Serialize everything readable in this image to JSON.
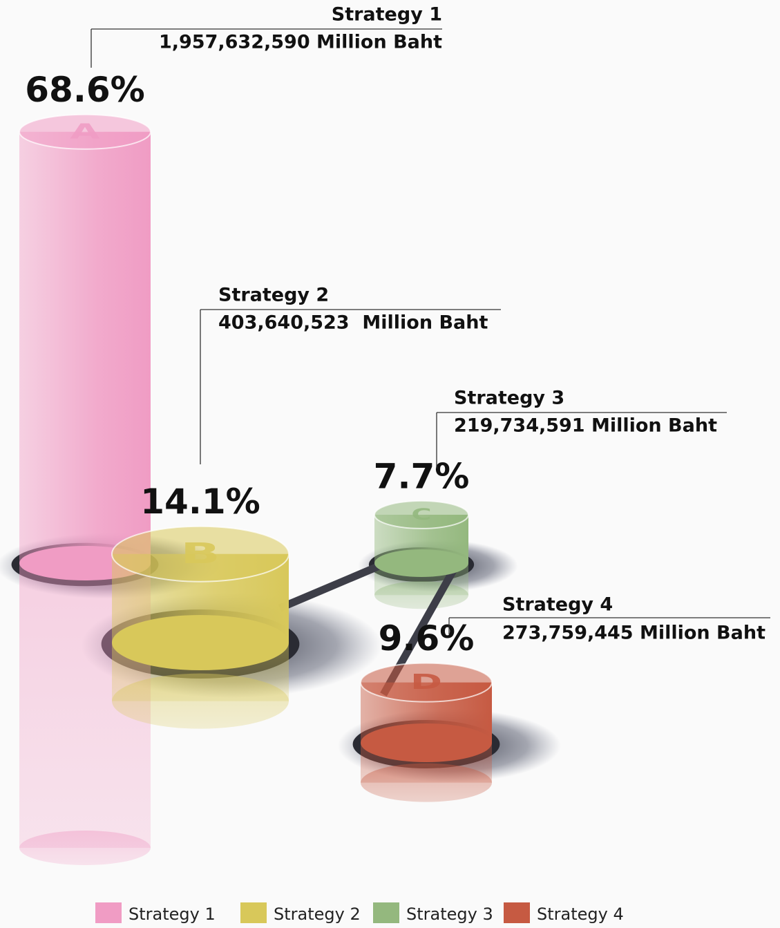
{
  "chart_data": {
    "type": "cylinder",
    "categories": [
      "A",
      "B",
      "C",
      "D"
    ],
    "values": [
      68.6,
      14.1,
      7.7,
      9.6
    ],
    "value_labels": [
      "68.6%",
      "14.1%",
      "7.7%",
      "9.6%"
    ],
    "colors": [
      "#f09cc4",
      "#d8c85a",
      "#94b87e",
      "#c65a42"
    ],
    "legend": [
      "Strategy 1",
      "Strategy 2",
      "Strategy 3",
      "Strategy 4"
    ],
    "callouts": [
      {
        "title": "Strategy 1",
        "amount": 1957632590,
        "amount_label": "1,957,632,590 Million Baht"
      },
      {
        "title": "Strategy 2",
        "amount": 403640523,
        "amount_label": "403,640,523  Million Baht"
      },
      {
        "title": "Strategy 3",
        "amount": 219734591,
        "amount_label": "219,734,591 Million Baht"
      },
      {
        "title": "Strategy 4",
        "amount": 273759445,
        "amount_label": "273,759,445 Million Baht"
      }
    ]
  }
}
